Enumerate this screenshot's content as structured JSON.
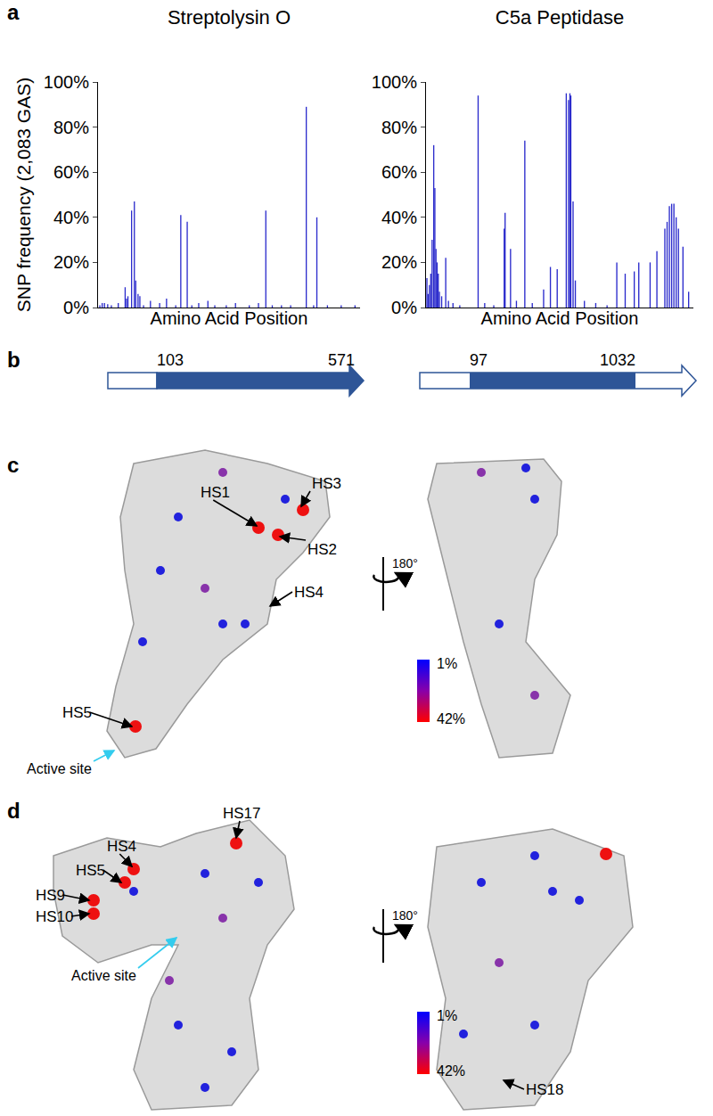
{
  "panels": [
    "a",
    "b",
    "c",
    "d"
  ],
  "chart_data": [
    {
      "type": "bar",
      "title": "Streptolysin O",
      "x_label": "Amino Acid Position",
      "y_label": "SNP frequency (2,083 GAS)",
      "x": [
        5,
        10,
        15,
        22,
        30,
        45,
        60,
        63,
        66,
        74,
        80,
        83,
        88,
        92,
        100,
        115,
        135,
        150,
        170,
        181,
        195,
        205,
        220,
        240,
        255,
        280,
        300,
        330,
        350,
        366,
        380,
        400,
        420,
        454,
        470,
        477,
        500,
        530,
        560
      ],
      "values": [
        1,
        2,
        2,
        1.5,
        1,
        2,
        9,
        4,
        5,
        43,
        47,
        12,
        6,
        5,
        1,
        3,
        2,
        4,
        1,
        41,
        38,
        1,
        2,
        3,
        1,
        1,
        2,
        1,
        2,
        43,
        1,
        1,
        1,
        89,
        1,
        40,
        1,
        1,
        1
      ],
      "color": "#2b2bcc",
      "xlim": [
        1,
        571
      ],
      "ylim": [
        0,
        100
      ],
      "yticks": [
        {
          "value": 0,
          "label": "0%"
        },
        {
          "value": 20,
          "label": "20%"
        },
        {
          "value": 40,
          "label": "40%"
        },
        {
          "value": 60,
          "label": "60%"
        },
        {
          "value": 80,
          "label": "80%"
        },
        {
          "value": 100,
          "label": "100%"
        }
      ],
      "tick_labels": "y",
      "grid": false
    },
    {
      "type": "bar",
      "title": "C5a Peptidase",
      "x_label": "Amino Acid Position",
      "x": [
        5,
        10,
        16,
        22,
        28,
        35,
        40,
        45,
        50,
        55,
        60,
        70,
        88,
        100,
        120,
        150,
        231,
        260,
        300,
        346,
        350,
        374,
        400,
        437,
        470,
        520,
        550,
        580,
        620,
        630,
        636,
        640,
        650,
        660,
        700,
        750,
        800,
        843,
        880,
        920,
        940,
        990,
        1020,
        1055,
        1065,
        1075,
        1085,
        1095,
        1105,
        1115,
        1135,
        1160
      ],
      "values": [
        13,
        6,
        10,
        15,
        30,
        72,
        53,
        26,
        20,
        15,
        7,
        5,
        22,
        3,
        2,
        1,
        94,
        2,
        1,
        35,
        42,
        26,
        3,
        74,
        2,
        8,
        18,
        17,
        95,
        92,
        95,
        94,
        47,
        12,
        3,
        2,
        1,
        20,
        15,
        16,
        20,
        20,
        25,
        35,
        38,
        45,
        46,
        46,
        40,
        35,
        27,
        7
      ],
      "color": "#2b2bcc",
      "xlim": [
        1,
        1181
      ],
      "ylim": [
        0,
        100
      ],
      "yticks": [
        {
          "value": 0,
          "label": "0%"
        },
        {
          "value": 20,
          "label": "20%"
        },
        {
          "value": 40,
          "label": "40%"
        },
        {
          "value": 60,
          "label": "60%"
        },
        {
          "value": 80,
          "label": "80%"
        },
        {
          "value": 100,
          "label": "100%"
        }
      ],
      "tick_labels": "y",
      "grid": false
    }
  ],
  "gene_diagrams": [
    {
      "start_label": "103",
      "end_label": "571",
      "color": "#2e5597"
    },
    {
      "start_label": "97",
      "end_label": "1032",
      "color": "#2e5597"
    }
  ],
  "structures": [
    {
      "panel": "c",
      "front_labels": [
        "HS1",
        "HS3",
        "HS2",
        "HS4",
        "HS5"
      ],
      "back_labels": [],
      "active_site": "Active site",
      "rotation": "180°",
      "colorbar_labels": [
        "1%",
        "42%"
      ]
    },
    {
      "panel": "d",
      "front_labels": [
        "HS17",
        "HS4",
        "HS5",
        "HS9",
        "HS10"
      ],
      "back_labels": [
        "HS18"
      ],
      "active_site": "Active site",
      "rotation": "180°",
      "colorbar_labels": [
        "1%",
        "42%"
      ]
    }
  ]
}
